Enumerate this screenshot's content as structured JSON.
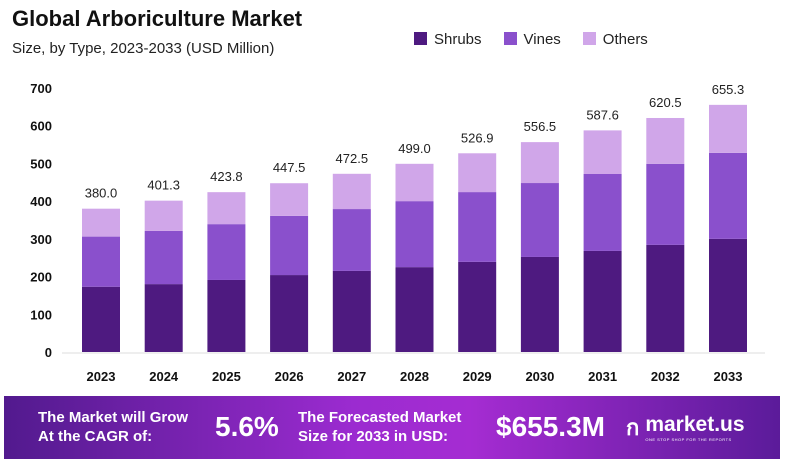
{
  "chart_data": {
    "type": "bar",
    "stacked": true,
    "title": "Global Arboriculture Market",
    "subtitle": "Size, by Type, 2023-2033 (USD Million)",
    "categories": [
      "2023",
      "2024",
      "2025",
      "2026",
      "2027",
      "2028",
      "2029",
      "2030",
      "2031",
      "2032",
      "2033"
    ],
    "series": [
      {
        "name": "Shrubs",
        "color": "#4E1A80",
        "values": [
          173,
          180,
          191,
          204,
          215,
          225,
          239,
          252,
          268,
          284,
          300
        ]
      },
      {
        "name": "Vines",
        "color": "#8A50CC",
        "values": [
          133,
          141,
          148,
          157,
          164,
          175,
          185,
          196,
          204,
          215,
          228
        ]
      },
      {
        "name": "Others",
        "color": "#D0A6E9",
        "values": [
          74,
          80.3,
          84.8,
          86.5,
          93.5,
          99,
          102.9,
          108.5,
          115.6,
          121.5,
          127.3
        ]
      }
    ],
    "totals": [
      "380.0",
      "401.3",
      "423.8",
      "447.5",
      "472.5",
      "499.0",
      "526.9",
      "556.5",
      "587.6",
      "620.5",
      "655.3"
    ],
    "yticks": [
      "0",
      "100",
      "200",
      "300",
      "400",
      "500",
      "600",
      "700"
    ],
    "ylim": [
      0,
      700
    ],
    "legend_position": "top-right",
    "grid": false
  },
  "banner": {
    "cagr_label_1": "The Market will Grow",
    "cagr_label_2": "At the CAGR of:",
    "cagr_value": "5.6%",
    "forecast_label_1": "The Forecasted Market",
    "forecast_label_2": "Size for 2033 in USD:",
    "forecast_value": "$655.3M",
    "brand": "market.us",
    "tagline": "ONE STOP SHOP FOR THE REPORTS"
  }
}
